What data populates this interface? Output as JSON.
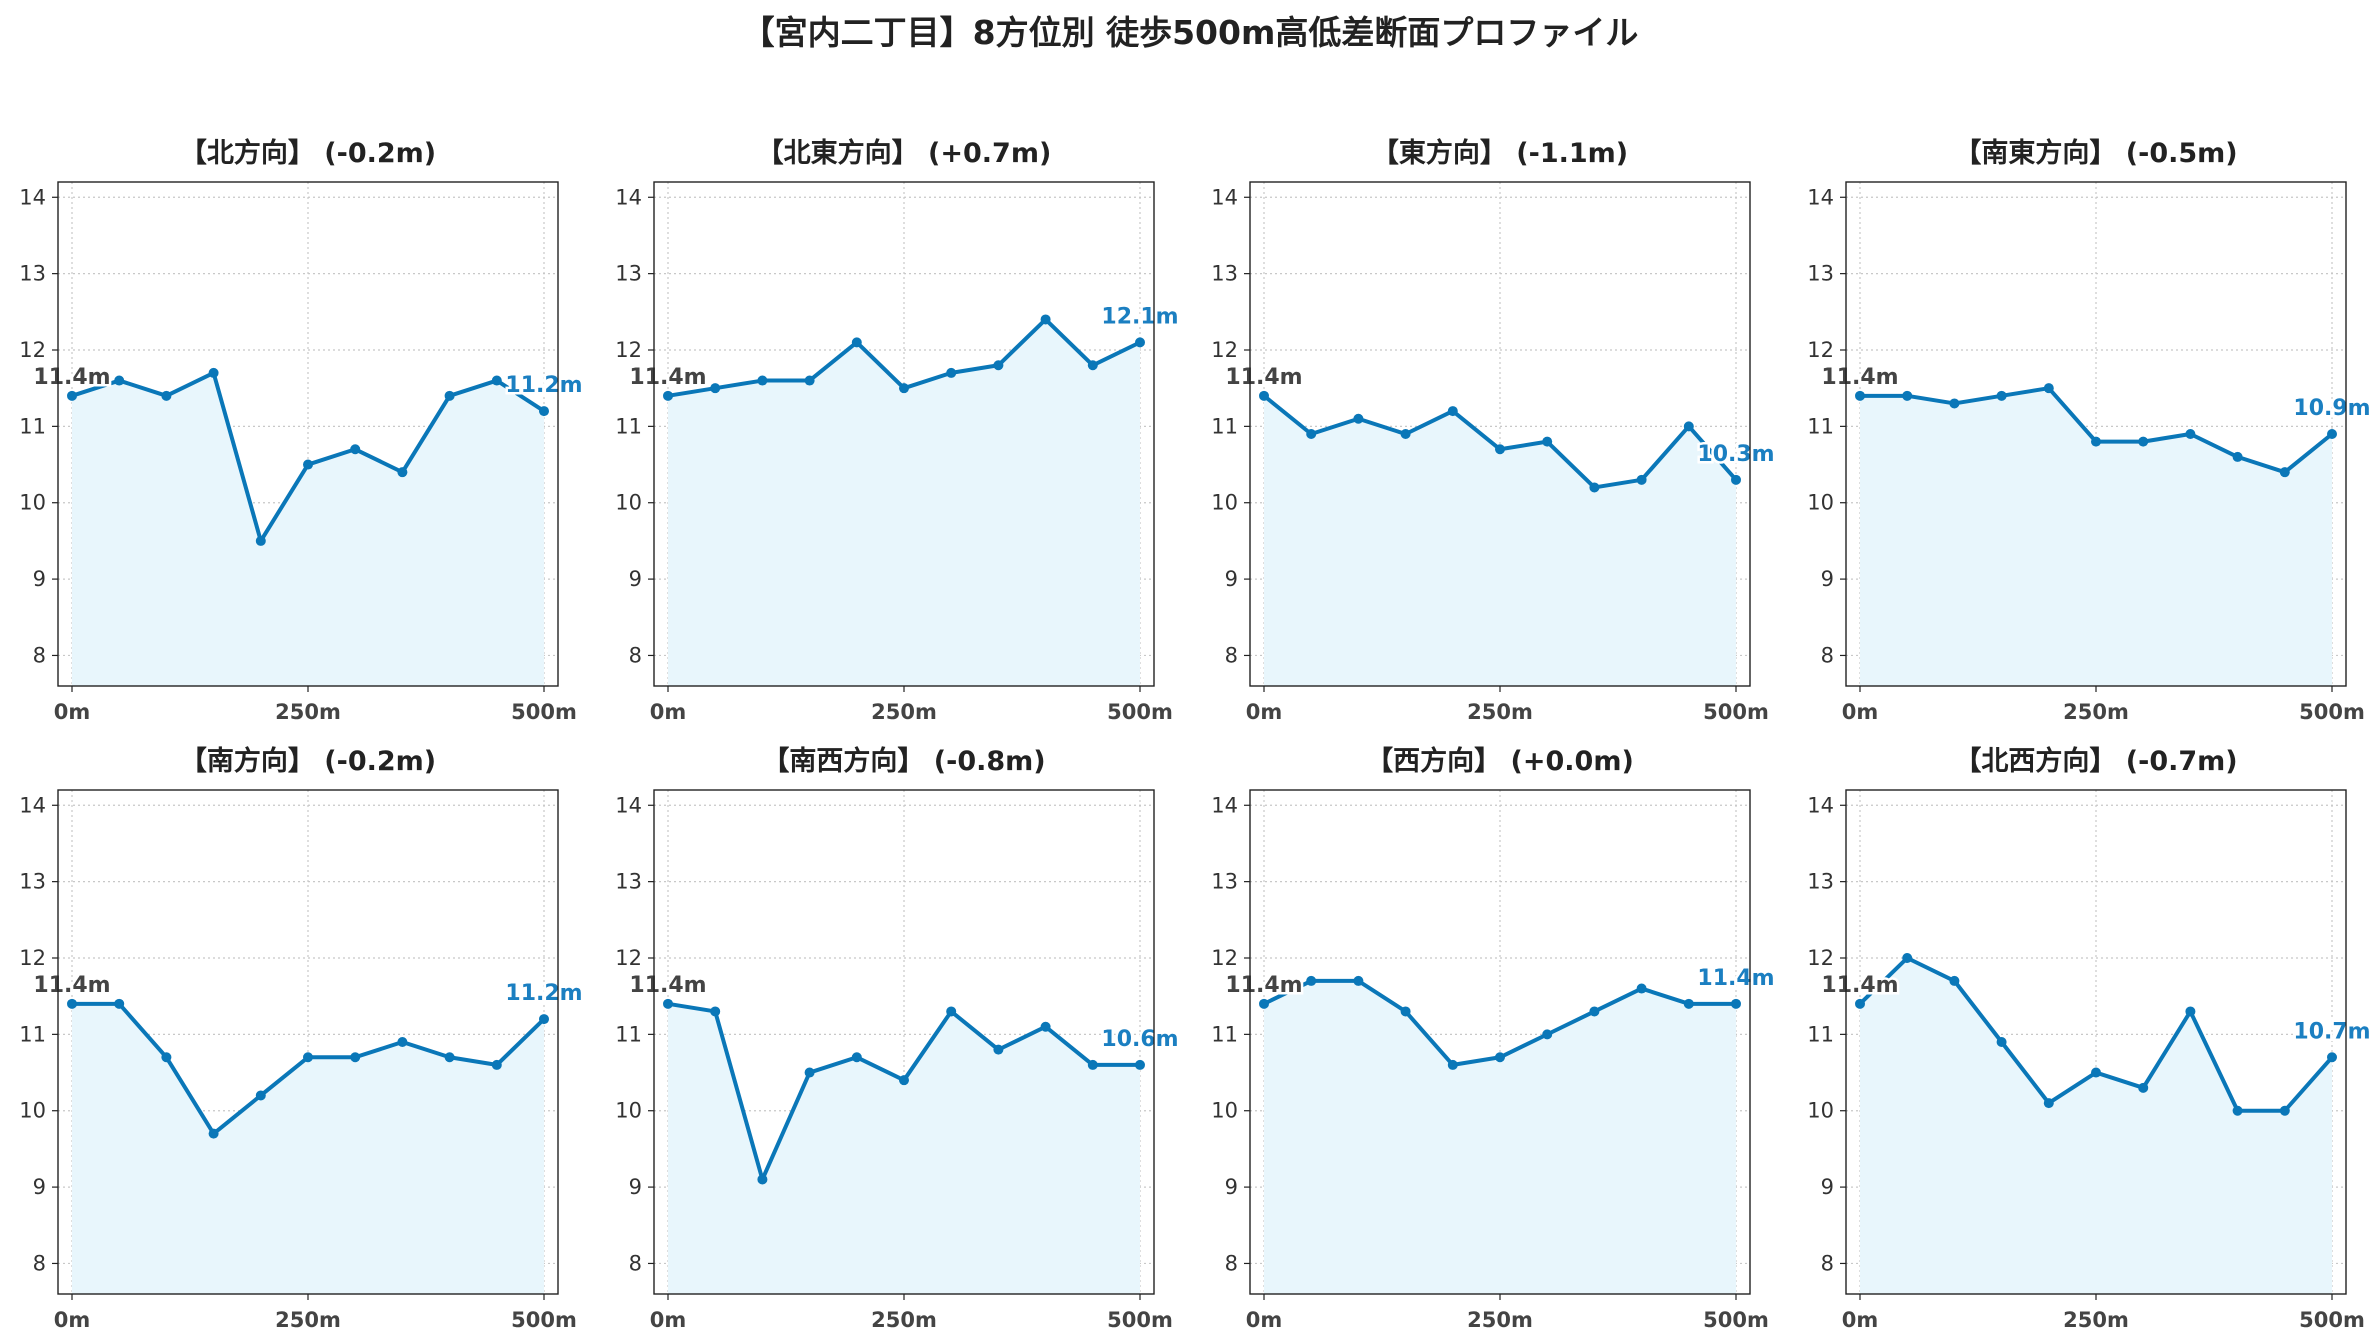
{
  "title": "【宮内二丁目】8方位別 徒歩500m高低差断面プロファイル",
  "colors": {
    "line": "#0a77b8",
    "fill": "#e8f6fc",
    "end_label": "#1b7fc1",
    "start_label": "#444444"
  },
  "chart_data": [
    {
      "type": "area",
      "title": "【北方向】 (-0.2m)",
      "x": [
        0,
        50,
        100,
        150,
        200,
        250,
        300,
        350,
        400,
        450,
        500
      ],
      "values": [
        11.4,
        11.6,
        11.4,
        11.7,
        9.5,
        10.5,
        10.7,
        10.4,
        11.4,
        11.6,
        11.2
      ],
      "start_label": "11.4m",
      "end_label": "11.2m",
      "xticks": [
        "0m",
        "250m",
        "500m"
      ],
      "yticks": [
        8,
        9,
        10,
        11,
        12,
        13,
        14
      ],
      "ylim": [
        7.6,
        14.2
      ],
      "grid": true
    },
    {
      "type": "area",
      "title": "【北東方向】 (+0.7m)",
      "x": [
        0,
        50,
        100,
        150,
        200,
        250,
        300,
        350,
        400,
        450,
        500
      ],
      "values": [
        11.4,
        11.5,
        11.6,
        11.6,
        12.1,
        11.5,
        11.7,
        11.8,
        12.4,
        11.8,
        12.1
      ],
      "start_label": "11.4m",
      "end_label": "12.1m",
      "xticks": [
        "0m",
        "250m",
        "500m"
      ],
      "yticks": [
        8,
        9,
        10,
        11,
        12,
        13,
        14
      ],
      "ylim": [
        7.6,
        14.2
      ],
      "grid": true
    },
    {
      "type": "area",
      "title": "【東方向】 (-1.1m)",
      "x": [
        0,
        50,
        100,
        150,
        200,
        250,
        300,
        350,
        400,
        450,
        500
      ],
      "values": [
        11.4,
        10.9,
        11.1,
        10.9,
        11.2,
        10.7,
        10.8,
        10.2,
        10.3,
        11.0,
        10.3
      ],
      "start_label": "11.4m",
      "end_label": "10.3m",
      "xticks": [
        "0m",
        "250m",
        "500m"
      ],
      "yticks": [
        8,
        9,
        10,
        11,
        12,
        13,
        14
      ],
      "ylim": [
        7.6,
        14.2
      ],
      "grid": true
    },
    {
      "type": "area",
      "title": "【南東方向】 (-0.5m)",
      "x": [
        0,
        50,
        100,
        150,
        200,
        250,
        300,
        350,
        400,
        450,
        500
      ],
      "values": [
        11.4,
        11.4,
        11.3,
        11.4,
        11.5,
        10.8,
        10.8,
        10.9,
        10.6,
        10.4,
        10.9
      ],
      "start_label": "11.4m",
      "end_label": "10.9m",
      "xticks": [
        "0m",
        "250m",
        "500m"
      ],
      "yticks": [
        8,
        9,
        10,
        11,
        12,
        13,
        14
      ],
      "ylim": [
        7.6,
        14.2
      ],
      "grid": true
    },
    {
      "type": "area",
      "title": "【南方向】 (-0.2m)",
      "x": [
        0,
        50,
        100,
        150,
        200,
        250,
        300,
        350,
        400,
        450,
        500
      ],
      "values": [
        11.4,
        11.4,
        10.7,
        9.7,
        10.2,
        10.7,
        10.7,
        10.9,
        10.7,
        10.6,
        11.2
      ],
      "start_label": "11.4m",
      "end_label": "11.2m",
      "xticks": [
        "0m",
        "250m",
        "500m"
      ],
      "yticks": [
        8,
        9,
        10,
        11,
        12,
        13,
        14
      ],
      "ylim": [
        7.6,
        14.2
      ],
      "grid": true
    },
    {
      "type": "area",
      "title": "【南西方向】 (-0.8m)",
      "x": [
        0,
        50,
        100,
        150,
        200,
        250,
        300,
        350,
        400,
        450,
        500
      ],
      "values": [
        11.4,
        11.3,
        9.1,
        10.5,
        10.7,
        10.4,
        11.3,
        10.8,
        11.1,
        10.6,
        10.6
      ],
      "start_label": "11.4m",
      "end_label": "10.6m",
      "xticks": [
        "0m",
        "250m",
        "500m"
      ],
      "yticks": [
        8,
        9,
        10,
        11,
        12,
        13,
        14
      ],
      "ylim": [
        7.6,
        14.2
      ],
      "grid": true
    },
    {
      "type": "area",
      "title": "【西方向】 (+0.0m)",
      "x": [
        0,
        50,
        100,
        150,
        200,
        250,
        300,
        350,
        400,
        450,
        500
      ],
      "values": [
        11.4,
        11.7,
        11.7,
        11.3,
        10.6,
        10.7,
        11.0,
        11.3,
        11.6,
        11.4,
        11.4
      ],
      "start_label": "11.4m",
      "end_label": "11.4m",
      "xticks": [
        "0m",
        "250m",
        "500m"
      ],
      "yticks": [
        8,
        9,
        10,
        11,
        12,
        13,
        14
      ],
      "ylim": [
        7.6,
        14.2
      ],
      "grid": true
    },
    {
      "type": "area",
      "title": "【北西方向】 (-0.7m)",
      "x": [
        0,
        50,
        100,
        150,
        200,
        250,
        300,
        350,
        400,
        450,
        500
      ],
      "values": [
        11.4,
        12.0,
        11.7,
        10.9,
        10.1,
        10.5,
        10.3,
        11.3,
        10.0,
        10.0,
        10.7
      ],
      "start_label": "11.4m",
      "end_label": "10.7m",
      "xticks": [
        "0m",
        "250m",
        "500m"
      ],
      "yticks": [
        8,
        9,
        10,
        11,
        12,
        13,
        14
      ],
      "ylim": [
        7.6,
        14.2
      ],
      "grid": true
    }
  ]
}
